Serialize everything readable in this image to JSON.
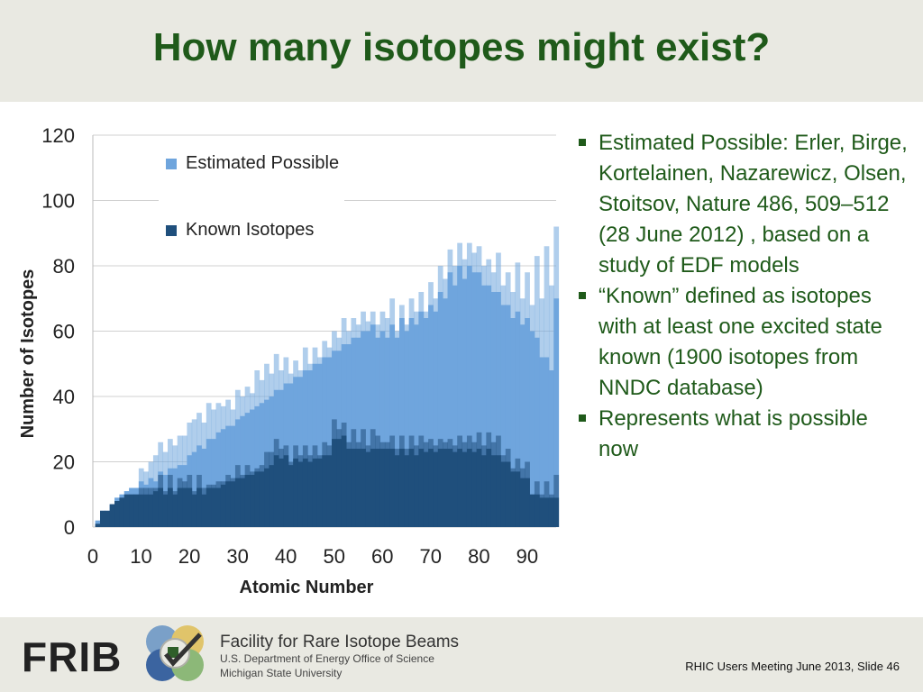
{
  "slide": {
    "title": "How many isotopes might exist?",
    "footer_note": "RHIC Users Meeting June 2013, Slide 46"
  },
  "branding": {
    "logo_text": "FRIB",
    "org_name": "Facility for Rare Isotope Beams",
    "org_line1": "U.S. Department of Energy Office of Science",
    "org_line2": "Michigan State University"
  },
  "bullets": [
    {
      "text": "Estimated Possible: Erler, Birge, Kortelainen, Nazarewicz, Olsen, Stoitsov, Nature 486, 509–512 (28 June 2012) , based on a study of EDF models"
    },
    {
      "text": "“Known” defined as isotopes with at least one excited state known (1900 isotopes from NNDC database)"
    },
    {
      "text": "Represents what is possible now"
    }
  ],
  "chart_data": {
    "type": "bar",
    "stacking": "overlay",
    "xlabel": "Atomic Number",
    "ylabel": "Number of Isotopes",
    "xlim": [
      0,
      96
    ],
    "ylim": [
      0,
      120
    ],
    "x_ticks": [
      0,
      10,
      20,
      30,
      40,
      50,
      60,
      70,
      80,
      90
    ],
    "y_ticks": [
      0,
      20,
      40,
      60,
      80,
      100,
      120
    ],
    "grid": "horizontal",
    "legend": "top-left",
    "colors": {
      "estimated": "#6fa5dd",
      "known": "#1f4f7c"
    },
    "series": [
      {
        "name": "Estimated Possible",
        "color": "#6fa5dd",
        "x": [
          1,
          2,
          3,
          4,
          5,
          6,
          7,
          8,
          9,
          10,
          11,
          12,
          13,
          14,
          15,
          16,
          17,
          18,
          19,
          20,
          21,
          22,
          23,
          24,
          25,
          26,
          27,
          28,
          29,
          30,
          31,
          32,
          33,
          34,
          35,
          36,
          37,
          38,
          39,
          40,
          41,
          42,
          43,
          44,
          45,
          46,
          47,
          48,
          49,
          50,
          51,
          52,
          53,
          54,
          55,
          56,
          57,
          58,
          59,
          60,
          61,
          62,
          63,
          64,
          65,
          66,
          67,
          68,
          69,
          70,
          71,
          72,
          73,
          74,
          75,
          76,
          77,
          78,
          79,
          80,
          81,
          82,
          83,
          84,
          85,
          86,
          87,
          88,
          89,
          90,
          91,
          92,
          93,
          94,
          95,
          96
        ],
        "values": [
          2,
          5,
          5,
          7,
          9,
          10,
          11,
          12,
          12,
          18,
          17,
          20,
          22,
          26,
          23,
          27,
          25,
          28,
          28,
          32,
          33,
          35,
          32,
          38,
          36,
          38,
          37,
          39,
          36,
          42,
          40,
          43,
          41,
          48,
          45,
          50,
          47,
          53,
          48,
          52,
          47,
          51,
          48,
          55,
          50,
          55,
          52,
          57,
          55,
          60,
          58,
          64,
          60,
          64,
          62,
          66,
          63,
          66,
          62,
          66,
          64,
          70,
          60,
          68,
          62,
          70,
          66,
          72,
          66,
          75,
          70,
          80,
          76,
          85,
          80,
          87,
          82,
          87,
          84,
          86,
          80,
          82,
          78,
          84,
          74,
          78,
          72,
          81,
          70,
          78,
          68,
          83,
          70,
          86,
          74,
          92
        ],
        "lower_values": [
          2,
          5,
          5,
          7,
          9,
          10,
          11,
          12,
          12,
          14,
          13,
          15,
          14,
          17,
          16,
          18,
          18,
          19,
          19,
          22,
          23,
          25,
          24,
          27,
          27,
          29,
          30,
          31,
          31,
          33,
          34,
          35,
          36,
          37,
          38,
          39,
          40,
          42,
          42,
          44,
          44,
          46,
          46,
          48,
          48,
          50,
          50,
          52,
          52,
          54,
          54,
          56,
          56,
          58,
          58,
          60,
          60,
          62,
          58,
          60,
          58,
          62,
          58,
          64,
          60,
          64,
          62,
          66,
          64,
          68,
          66,
          72,
          70,
          78,
          74,
          80,
          76,
          80,
          78,
          78,
          74,
          74,
          72,
          72,
          68,
          68,
          64,
          66,
          62,
          64,
          60,
          58,
          52,
          52,
          48,
          70
        ]
      },
      {
        "name": "Known Isotopes",
        "color": "#1f4f7c",
        "x": [
          1,
          2,
          3,
          4,
          5,
          6,
          7,
          8,
          9,
          10,
          11,
          12,
          13,
          14,
          15,
          16,
          17,
          18,
          19,
          20,
          21,
          22,
          23,
          24,
          25,
          26,
          27,
          28,
          29,
          30,
          31,
          32,
          33,
          34,
          35,
          36,
          37,
          38,
          39,
          40,
          41,
          42,
          43,
          44,
          45,
          46,
          47,
          48,
          49,
          50,
          51,
          52,
          53,
          54,
          55,
          56,
          57,
          58,
          59,
          60,
          61,
          62,
          63,
          64,
          65,
          66,
          67,
          68,
          69,
          70,
          71,
          72,
          73,
          74,
          75,
          76,
          77,
          78,
          79,
          80,
          81,
          82,
          83,
          84,
          85,
          86,
          87,
          88,
          89,
          90,
          91,
          92,
          93,
          94,
          95,
          96
        ],
        "values": [
          1,
          5,
          5,
          7,
          8,
          9,
          10,
          10,
          10,
          12,
          12,
          12,
          12,
          16,
          11,
          16,
          11,
          15,
          14,
          16,
          11,
          16,
          12,
          13,
          13,
          14,
          14,
          16,
          15,
          19,
          16,
          19,
          17,
          18,
          19,
          23,
          23,
          27,
          24,
          25,
          20,
          25,
          22,
          25,
          22,
          25,
          22,
          26,
          25,
          33,
          30,
          32,
          26,
          30,
          26,
          30,
          25,
          30,
          28,
          26,
          26,
          28,
          24,
          28,
          24,
          28,
          25,
          28,
          26,
          27,
          25,
          27,
          26,
          27,
          25,
          28,
          26,
          28,
          26,
          29,
          25,
          29,
          26,
          28,
          22,
          24,
          18,
          21,
          18,
          20,
          10,
          14,
          10,
          14,
          10,
          16
        ],
        "lower_values": [
          1,
          5,
          5,
          7,
          8,
          9,
          10,
          10,
          10,
          10,
          10,
          10,
          11,
          12,
          10,
          12,
          10,
          12,
          12,
          12,
          10,
          12,
          10,
          12,
          12,
          12,
          13,
          14,
          14,
          15,
          15,
          16,
          16,
          17,
          17,
          18,
          19,
          22,
          21,
          22,
          19,
          21,
          20,
          21,
          20,
          21,
          21,
          22,
          22,
          27,
          27,
          28,
          24,
          24,
          24,
          24,
          23,
          24,
          24,
          24,
          24,
          24,
          22,
          24,
          22,
          24,
          22,
          24,
          23,
          24,
          23,
          24,
          24,
          24,
          23,
          24,
          23,
          24,
          23,
          24,
          22,
          24,
          22,
          22,
          20,
          20,
          17,
          17,
          15,
          15,
          10,
          10,
          9,
          9,
          9,
          9
        ]
      }
    ]
  }
}
